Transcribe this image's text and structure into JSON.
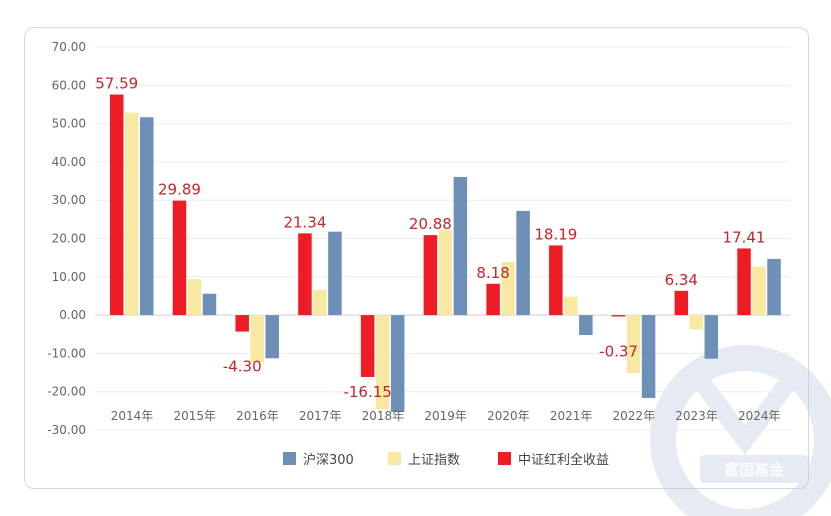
{
  "chart_data": {
    "type": "bar",
    "title": "",
    "xlabel": "",
    "ylabel": "",
    "ylim": [
      -30,
      70
    ],
    "yticks": [
      "70.00",
      "60.00",
      "50.00",
      "40.00",
      "30.00",
      "20.00",
      "10.00",
      "0.00",
      "-10.00",
      "-20.00",
      "-30.00"
    ],
    "categories": [
      "2014年",
      "2015年",
      "2016年",
      "2017年",
      "2018年",
      "2019年",
      "2020年",
      "2021年",
      "2022年",
      "2023年",
      "2024年"
    ],
    "series": [
      {
        "name": "中证红利全收益",
        "color": "#ee1c25",
        "values": [
          57.59,
          29.89,
          -4.3,
          21.34,
          -16.15,
          20.88,
          8.18,
          18.19,
          -0.37,
          6.34,
          17.41
        ]
      },
      {
        "name": "上证指数",
        "color": "#f7e9a2",
        "values": [
          52.87,
          9.41,
          -12.31,
          6.56,
          -24.59,
          22.3,
          13.87,
          4.8,
          -15.13,
          -3.7,
          12.67
        ]
      },
      {
        "name": "沪深300",
        "color": "#6d8fb8",
        "values": [
          51.66,
          5.58,
          -11.28,
          21.78,
          -25.31,
          36.07,
          27.21,
          -5.2,
          -21.63,
          -11.38,
          14.68
        ]
      }
    ],
    "data_labels": [
      "57.59",
      "29.89",
      "-4.30",
      "21.34",
      "-16.15",
      "20.88",
      "8.18",
      "18.19",
      "-0.37",
      "6.34",
      "17.41"
    ],
    "legend": [
      "沪深300",
      "上证指数",
      "中证红利全收益"
    ],
    "legend_position": "bottom"
  },
  "watermark": {
    "text": "富国基金"
  }
}
